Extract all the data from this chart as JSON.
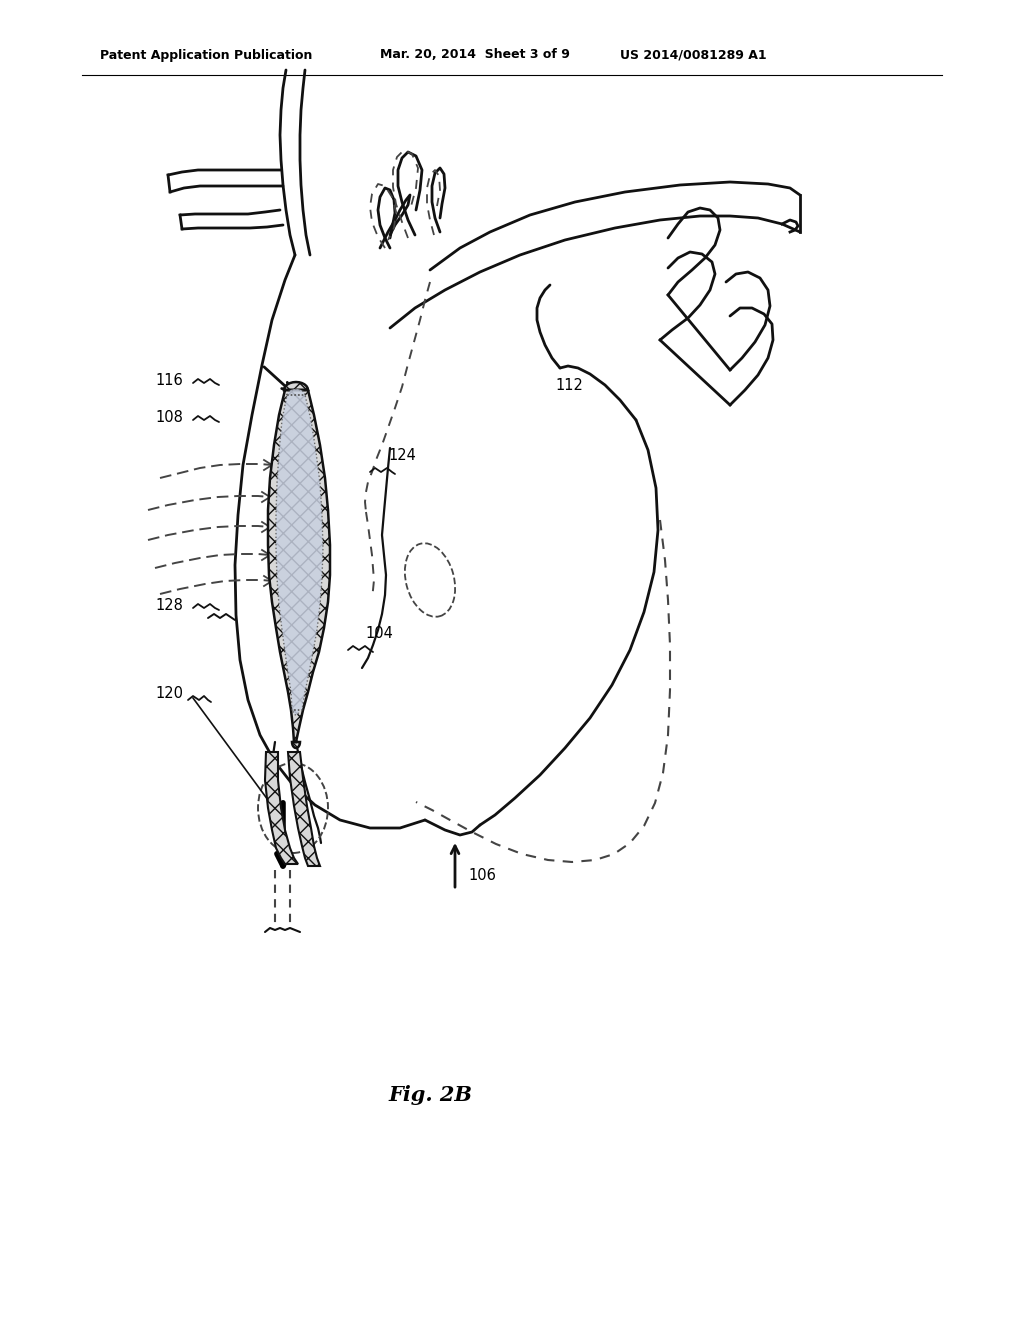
{
  "title": "Fig. 2B",
  "header_left": "Patent Application Publication",
  "header_mid": "Mar. 20, 2014  Sheet 3 of 9",
  "header_right": "US 2014/0081289 A1",
  "bg_color": "#ffffff",
  "line_color": "#111111",
  "dashed_color": "#444444"
}
